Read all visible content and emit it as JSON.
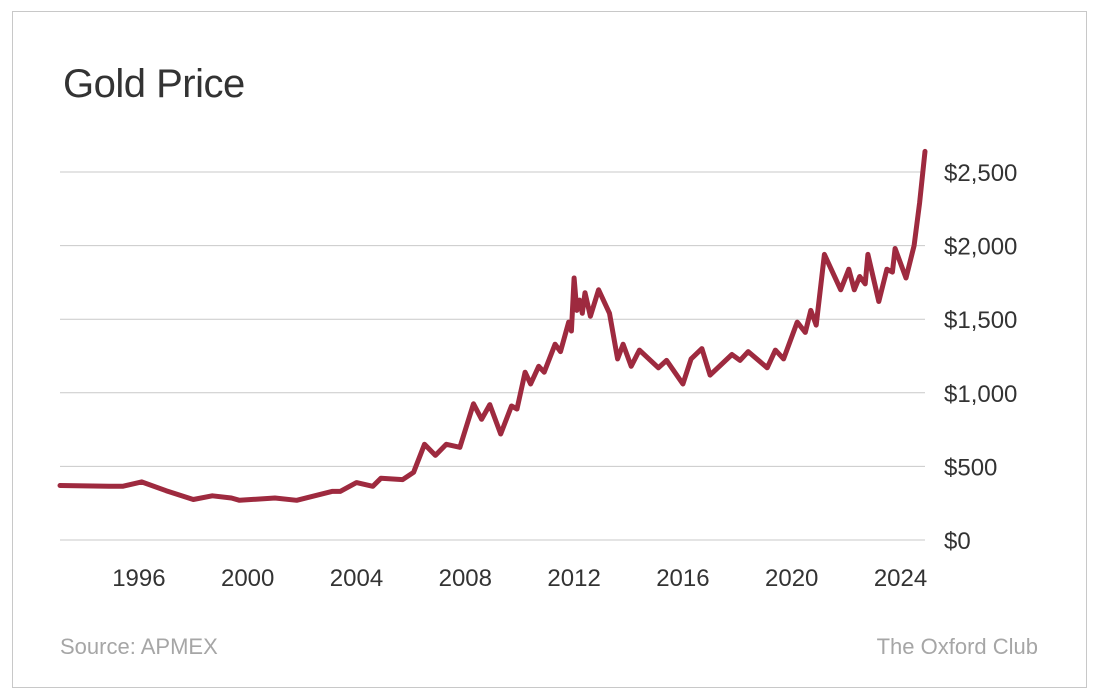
{
  "colors": {
    "line": "#9e2a3f",
    "grid": "#c9c9c9",
    "text": "#333333",
    "footer": "#a6a6a6"
  },
  "footer": {
    "source": "Source: APMEX",
    "brand": "The Oxford Club"
  },
  "chart_data": {
    "type": "line",
    "title": "Gold Price",
    "xlabel": "",
    "ylabel": "",
    "xlim": [
      1993.1,
      2024.9
    ],
    "ylim": [
      0,
      2500
    ],
    "grid": "horizontal",
    "legend": "none",
    "x_ticks": [
      {
        "value": 1996,
        "label": "1996"
      },
      {
        "value": 2000,
        "label": "2000"
      },
      {
        "value": 2004,
        "label": "2004"
      },
      {
        "value": 2008,
        "label": "2008"
      },
      {
        "value": 2012,
        "label": "2012"
      },
      {
        "value": 2016,
        "label": "2016"
      },
      {
        "value": 2020,
        "label": "2020"
      },
      {
        "value": 2024,
        "label": "2024"
      }
    ],
    "y_ticks": [
      {
        "value": 0,
        "label": "$0"
      },
      {
        "value": 500,
        "label": "$500"
      },
      {
        "value": 1000,
        "label": "$1,000"
      },
      {
        "value": 1500,
        "label": "$1,500"
      },
      {
        "value": 2000,
        "label": "$2,000"
      },
      {
        "value": 2500,
        "label": "$2,500"
      }
    ],
    "series": [
      {
        "name": "Gold Price",
        "x": [
          1993.1,
          1994.9,
          1995.4,
          1996.1,
          1997.0,
          1998.0,
          1998.7,
          1999.4,
          1999.7,
          2001.0,
          2001.8,
          2003.1,
          2003.4,
          2004.0,
          2004.6,
          2004.9,
          2005.7,
          2006.1,
          2006.5,
          2006.9,
          2007.3,
          2007.8,
          2008.3,
          2008.6,
          2008.9,
          2009.3,
          2009.7,
          2009.9,
          2010.2,
          2010.4,
          2010.7,
          2010.9,
          2011.3,
          2011.5,
          2011.8,
          2011.9,
          2012.0,
          2012.1,
          2012.2,
          2012.3,
          2012.4,
          2012.6,
          2012.9,
          2013.3,
          2013.6,
          2013.8,
          2014.1,
          2014.4,
          2015.1,
          2015.4,
          2016.0,
          2016.3,
          2016.7,
          2017.0,
          2017.8,
          2018.1,
          2018.4,
          2019.1,
          2019.4,
          2019.7,
          2020.2,
          2020.5,
          2020.7,
          2020.9,
          2021.2,
          2021.8,
          2022.1,
          2022.3,
          2022.5,
          2022.7,
          2022.8,
          2023.2,
          2023.5,
          2023.7,
          2023.8,
          2024.2,
          2024.5,
          2024.7,
          2024.9
        ],
        "values": [
          370,
          365,
          365,
          395,
          335,
          275,
          300,
          285,
          270,
          285,
          270,
          330,
          330,
          390,
          365,
          420,
          410,
          460,
          650,
          575,
          650,
          630,
          925,
          820,
          920,
          720,
          910,
          890,
          1140,
          1060,
          1180,
          1140,
          1330,
          1280,
          1480,
          1420,
          1780,
          1560,
          1630,
          1540,
          1680,
          1520,
          1700,
          1540,
          1230,
          1330,
          1180,
          1290,
          1170,
          1220,
          1060,
          1230,
          1300,
          1120,
          1260,
          1220,
          1280,
          1170,
          1290,
          1230,
          1480,
          1410,
          1560,
          1460,
          1940,
          1700,
          1840,
          1700,
          1790,
          1740,
          1940,
          1620,
          1840,
          1820,
          1980,
          1780,
          2000,
          2290,
          2640
        ]
      }
    ]
  }
}
